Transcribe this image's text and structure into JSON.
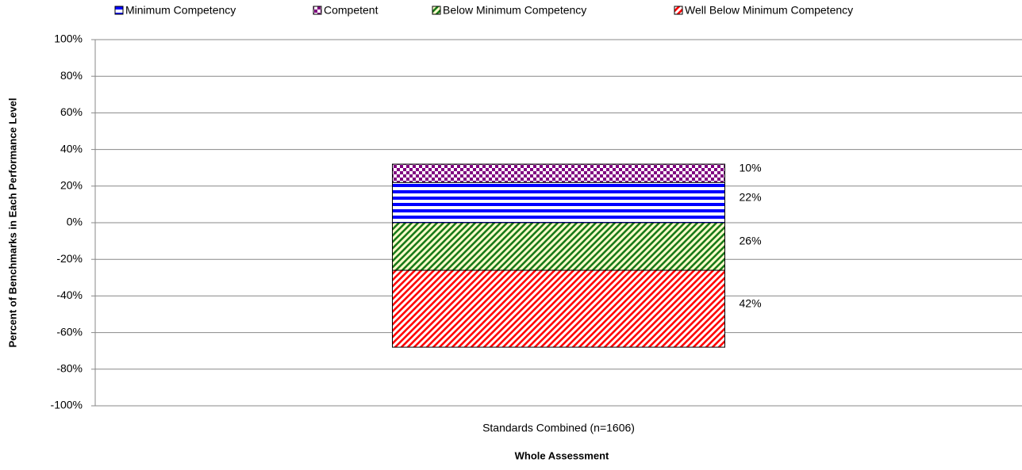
{
  "chart_data": {
    "type": "stacked_bar",
    "y_axis_label": "Percent of Benchmarks in Each Performance Level",
    "x_axis_label": "Whole Assessment",
    "categories": [
      "Standards Combined (n=1606)"
    ],
    "series": [
      {
        "name": "Minimum Competency",
        "color": "#0000ff",
        "background": "#ffffff",
        "pattern": "horizontal",
        "values": [
          22
        ],
        "value_labels": [
          "22%"
        ]
      },
      {
        "name": "Competent",
        "color": "#800080",
        "background": "#ffffff",
        "pattern": "checker",
        "values": [
          10
        ],
        "value_labels": [
          "10%"
        ]
      },
      {
        "name": "Below Minimum Competency",
        "color": "#1a7a1a",
        "background": "#ffffcc",
        "pattern": "diagonal",
        "values": [
          -26
        ],
        "value_labels": [
          "26%"
        ]
      },
      {
        "name": "Well Below Minimum Competency",
        "color": "#ff0000",
        "background": "#ffffff",
        "pattern": "diagonal",
        "values": [
          -42
        ],
        "value_labels": [
          "42%"
        ]
      }
    ],
    "ylim": [
      -100,
      100
    ],
    "yticks": [
      {
        "value": -100,
        "label": "-100%"
      },
      {
        "value": -80,
        "label": "-80%"
      },
      {
        "value": -60,
        "label": "-60%"
      },
      {
        "value": -40,
        "label": "-40%"
      },
      {
        "value": -20,
        "label": "-20%"
      },
      {
        "value": 0,
        "label": "0%"
      },
      {
        "value": 20,
        "label": "20%"
      },
      {
        "value": 40,
        "label": "40%"
      },
      {
        "value": 60,
        "label": "60%"
      },
      {
        "value": 80,
        "label": "80%"
      },
      {
        "value": 100,
        "label": "100%"
      }
    ],
    "grid": true,
    "legend": "top"
  }
}
